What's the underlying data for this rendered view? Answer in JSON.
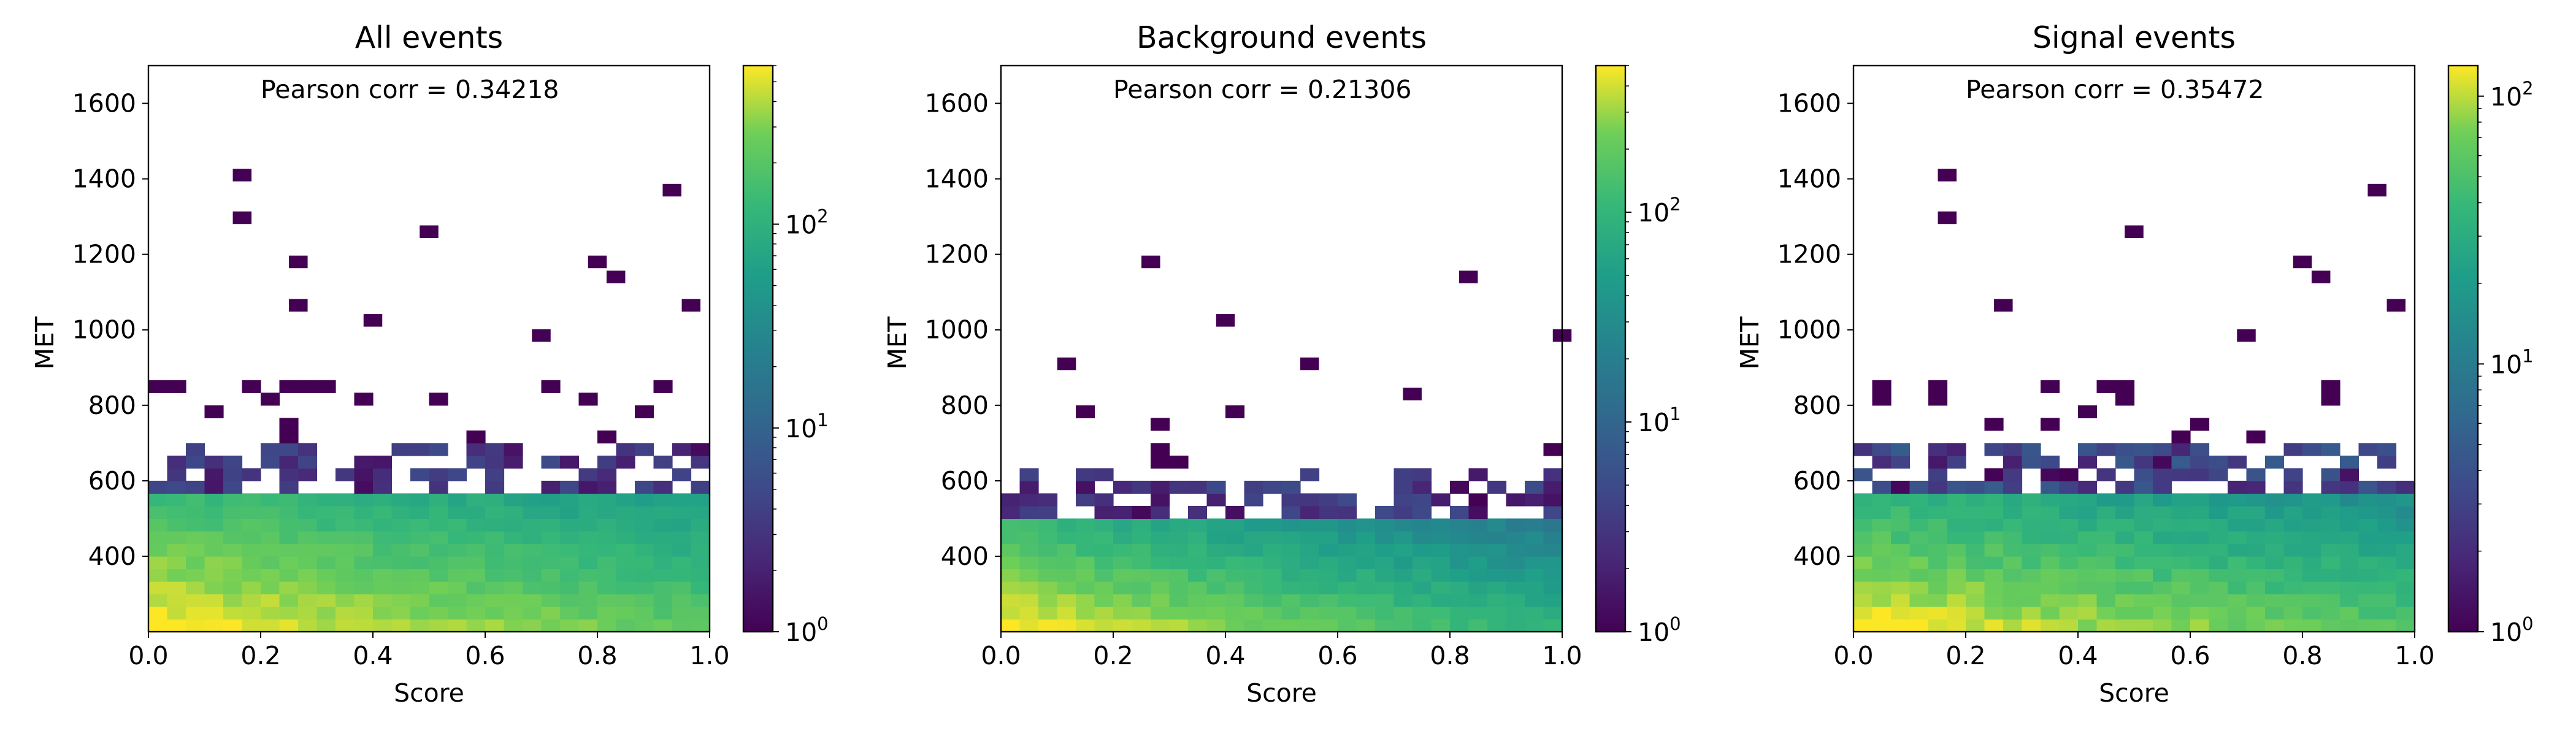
{
  "chart_data": [
    {
      "type": "heatmap",
      "title": "All events",
      "xlabel": "Score",
      "ylabel": "MET",
      "xlim": [
        0.0,
        1.0
      ],
      "ylim": [
        200,
        1700
      ],
      "x_ticks": [
        "0.0",
        "0.2",
        "0.4",
        "0.6",
        "0.8",
        "1.0"
      ],
      "y_ticks": [
        "400",
        "600",
        "800",
        "1000",
        "1200",
        "1400",
        "1600"
      ],
      "annotation": "Pearson corr = 0.34218",
      "colorbar": {
        "scale": "log",
        "min": 1,
        "max": 600,
        "ticks": [
          "10",
          "10",
          "10"
        ],
        "tick_exponents": [
          "0",
          "1",
          "2"
        ]
      },
      "bins": {
        "nx": 30,
        "ny": 45,
        "peak_count": 600,
        "y_decay_per_bin": 0.87,
        "x_decay_per_bin": 0.035,
        "populated_bins": 15,
        "edge_density": 0.55,
        "tail_density": 0.12
      },
      "outliers": [
        [
          0.167,
          1410
        ],
        [
          0.167,
          1297
        ],
        [
          0.5,
          1260
        ],
        [
          0.933,
          1370
        ],
        [
          0.267,
          1180
        ],
        [
          0.8,
          1180
        ],
        [
          0.833,
          1140
        ],
        [
          0.267,
          1065
        ],
        [
          0.967,
          1065
        ],
        [
          0.4,
          1025
        ],
        [
          0.7,
          985
        ]
      ]
    },
    {
      "type": "heatmap",
      "title": "Background events",
      "xlabel": "Score",
      "ylabel": "MET",
      "xlim": [
        0.0,
        1.0
      ],
      "ylim": [
        200,
        1700
      ],
      "x_ticks": [
        "0.0",
        "0.2",
        "0.4",
        "0.6",
        "0.8",
        "1.0"
      ],
      "y_ticks": [
        "400",
        "600",
        "800",
        "1000",
        "1200",
        "1400",
        "1600"
      ],
      "annotation": "Pearson corr = 0.21306",
      "colorbar": {
        "scale": "log",
        "min": 1,
        "max": 500,
        "ticks": [
          "10",
          "10",
          "10"
        ],
        "tick_exponents": [
          "0",
          "1",
          "2"
        ]
      },
      "bins": {
        "nx": 30,
        "ny": 45,
        "peak_count": 500,
        "y_decay_per_bin": 0.83,
        "x_decay_per_bin": 0.06,
        "populated_bins": 13,
        "edge_density": 0.5,
        "tail_density": 0.06
      },
      "outliers": [
        [
          0.267,
          1180
        ],
        [
          0.833,
          1140
        ],
        [
          0.4,
          1025
        ],
        [
          1.0,
          985
        ],
        [
          0.117,
          910
        ],
        [
          0.55,
          910
        ],
        [
          0.733,
          830
        ]
      ]
    },
    {
      "type": "heatmap",
      "title": "Signal events",
      "xlabel": "Score",
      "ylabel": "MET",
      "xlim": [
        0.0,
        1.0
      ],
      "ylim": [
        200,
        1700
      ],
      "x_ticks": [
        "0.0",
        "0.2",
        "0.4",
        "0.6",
        "0.8",
        "1.0"
      ],
      "y_ticks": [
        "400",
        "600",
        "800",
        "1000",
        "1200",
        "1400",
        "1600"
      ],
      "annotation": "Pearson corr = 0.35472",
      "colorbar": {
        "scale": "log",
        "min": 1,
        "max": 130,
        "ticks": [
          "10",
          "10",
          "10"
        ],
        "tick_exponents": [
          "0",
          "1",
          "2"
        ]
      },
      "bins": {
        "nx": 30,
        "ny": 45,
        "peak_count": 130,
        "y_decay_per_bin": 0.88,
        "x_decay_per_bin": 0.03,
        "populated_bins": 15,
        "edge_density": 0.55,
        "tail_density": 0.12
      },
      "outliers": [
        [
          0.167,
          1410
        ],
        [
          0.167,
          1297
        ],
        [
          0.5,
          1260
        ],
        [
          0.933,
          1370
        ],
        [
          0.8,
          1180
        ],
        [
          0.833,
          1140
        ],
        [
          0.267,
          1065
        ],
        [
          0.967,
          1065
        ],
        [
          0.7,
          985
        ]
      ]
    }
  ]
}
